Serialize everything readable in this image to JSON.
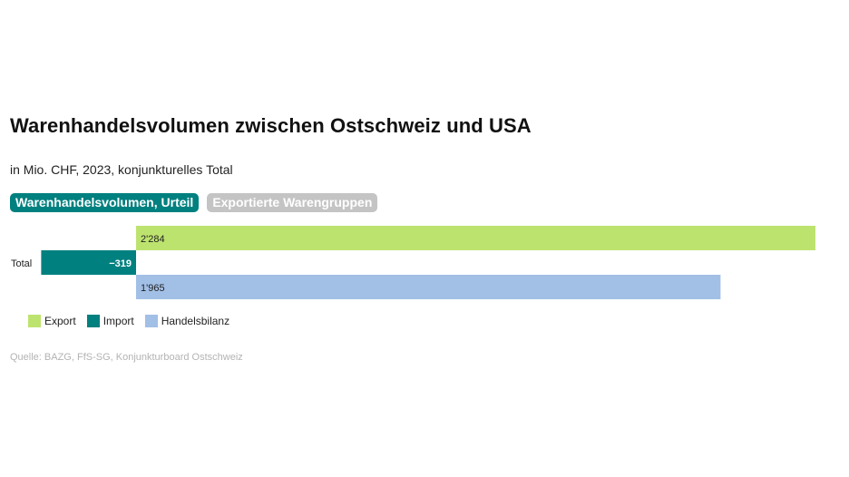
{
  "header": {
    "title": "Warenhandelsvolumen zwischen Ostschweiz und USA",
    "subtitle": "in Mio. CHF, 2023, konjunkturelles Total"
  },
  "tabs": [
    {
      "label": "Warenhandelsvolumen, Urteil",
      "active": true
    },
    {
      "label": "Exportierte Warengruppen",
      "active": false
    }
  ],
  "colors": {
    "export": "#bde36f",
    "import": "#00807f",
    "handelsbilanz": "#a2bfe6"
  },
  "chart_data": {
    "type": "bar",
    "orientation": "horizontal",
    "categories": [
      "Total"
    ],
    "series": [
      {
        "name": "Export",
        "values": [
          2284
        ],
        "label": "2'284"
      },
      {
        "name": "Import",
        "values": [
          -319
        ],
        "label": "−319"
      },
      {
        "name": "Handelsbilanz",
        "values": [
          1965
        ],
        "label": "1'965"
      }
    ],
    "xlim": [
      -319,
      2284
    ],
    "grid": false,
    "legend": "bottom-left"
  },
  "source": "Quelle: BAZG, FfS-SG, Konjunkturboard Ostschweiz"
}
